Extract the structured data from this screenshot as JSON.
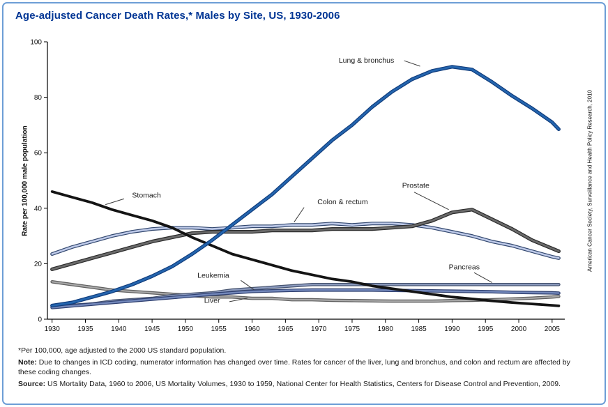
{
  "chart_data": {
    "type": "line",
    "title": "Age-adjusted Cancer Death Rates,* Males by Site, US, 1930-2006",
    "xlabel": "",
    "ylabel": "Rate per 100,000 male population",
    "xlim": [
      1929.3,
      2006.9
    ],
    "ylim": [
      0,
      100
    ],
    "grid": false,
    "legend_position": "inline-annotations",
    "x_ticks": [
      1930,
      1935,
      1940,
      1945,
      1950,
      1955,
      1960,
      1965,
      1970,
      1975,
      1980,
      1985,
      1990,
      1995,
      2000,
      2005
    ],
    "y_ticks": [
      0,
      20,
      40,
      60,
      80,
      100
    ],
    "x": [
      1930,
      1933,
      1936,
      1939,
      1942,
      1945,
      1948,
      1951,
      1954,
      1957,
      1960,
      1963,
      1966,
      1969,
      1972,
      1975,
      1978,
      1981,
      1984,
      1987,
      1990,
      1993,
      1996,
      1999,
      2002,
      2005,
      2006
    ],
    "series": [
      {
        "name": "Liver",
        "color": "#a8a8a8",
        "outline": "#606060",
        "width": 2.2,
        "values": [
          13.5,
          12.5,
          11.5,
          10.5,
          10,
          9.5,
          9,
          8.5,
          8,
          8,
          7.5,
          7.5,
          7,
          7,
          6.8,
          6.7,
          6.6,
          6.5,
          6.5,
          6.5,
          6.7,
          6.8,
          7,
          7.3,
          7.6,
          8,
          8.2
        ]
      },
      {
        "name": "Pancreas",
        "color": "#8d9cc0",
        "outline": "#46536f",
        "width": 2.2,
        "values": [
          4.5,
          5,
          5.5,
          6.5,
          7,
          7.5,
          8.5,
          9,
          9.5,
          10.5,
          11,
          11.5,
          12,
          12.5,
          12.5,
          12.5,
          12.5,
          12.5,
          12.5,
          12.5,
          12.5,
          12.5,
          12.5,
          12.5,
          12.5,
          12.5,
          12.5
        ]
      },
      {
        "name": "Leukemia",
        "color": "#7388bb",
        "outline": "#2f4070",
        "width": 2.4,
        "values": [
          4.2,
          4.8,
          5.4,
          6,
          6.6,
          7.2,
          7.8,
          8.4,
          9,
          9.5,
          10,
          10.2,
          10.4,
          10.5,
          10.5,
          10.5,
          10.5,
          10.4,
          10.3,
          10.2,
          10.1,
          10,
          9.9,
          9.7,
          9.6,
          9.5,
          9.4
        ]
      },
      {
        "name": "Colon & rectum",
        "color": "#bdc9e8",
        "outline": "#33486f",
        "width": 2.6,
        "values": [
          23.5,
          26,
          28,
          30,
          31.5,
          32.5,
          33,
          33,
          32.5,
          33,
          33.5,
          33.5,
          34,
          34,
          34.5,
          34,
          34.5,
          34.5,
          34,
          33,
          31.5,
          30,
          28,
          26.5,
          24.5,
          22.5,
          22
        ]
      },
      {
        "name": "Prostate",
        "color": "#6a6a6a",
        "outline": "#2b2b2b",
        "width": 2.8,
        "values": [
          18,
          20,
          22,
          24,
          26,
          28,
          29.5,
          31,
          31.5,
          31.5,
          31.5,
          32,
          32,
          32,
          32.5,
          32.5,
          32.5,
          33,
          33.5,
          35.5,
          38.5,
          39.5,
          36,
          32.5,
          28.5,
          25.5,
          24.5
        ]
      },
      {
        "name": "Stomach",
        "color": "#141414",
        "outline": null,
        "width": 3.8,
        "values": [
          46,
          44,
          42,
          39.5,
          37.5,
          35.5,
          33,
          29.5,
          26.5,
          23.5,
          21.5,
          19.5,
          17.5,
          16,
          14.5,
          13.5,
          12,
          11,
          10,
          9,
          8,
          7.3,
          6.6,
          6,
          5.5,
          5,
          4.8
        ]
      },
      {
        "name": "Lung & bronchus",
        "color": "#2465ae",
        "outline": "#113d7d",
        "width": 2.8,
        "values": [
          4.9,
          6,
          8,
          10,
          12.5,
          15.5,
          19,
          23.5,
          28.5,
          34,
          39.5,
          45,
          51.5,
          58,
          64.5,
          70,
          76.5,
          82,
          86.5,
          89.5,
          91,
          90,
          85.5,
          80.5,
          76,
          71,
          68.5
        ]
      }
    ],
    "annotations": [
      {
        "label": "Lung & bronchus",
        "text_x": 1973,
        "text_y": 92.5,
        "line": [
          1982.8,
          93.2,
          1985.2,
          91.2
        ]
      },
      {
        "label": "Stomach",
        "text_x": 1942,
        "text_y": 43.8,
        "line": [
          1940.8,
          43.4,
          1938.0,
          41.3
        ]
      },
      {
        "label": "Colon & rectum",
        "text_x": 1969.8,
        "text_y": 41.5,
        "line": [
          1967.8,
          40.3,
          1966.3,
          35.0
        ]
      },
      {
        "label": "Prostate",
        "text_x": 1982.5,
        "text_y": 47.3,
        "line": [
          1984.3,
          45.8,
          1989.5,
          39.5
        ]
      },
      {
        "label": "Pancreas",
        "text_x": 1989.5,
        "text_y": 18.0,
        "line": [
          1993.3,
          16.8,
          1996.0,
          13.2
        ]
      },
      {
        "label": "Leukemia",
        "text_x": 1951.8,
        "text_y": 15.0,
        "line": [
          1958.3,
          14.0,
          1960.3,
          10.6
        ]
      },
      {
        "label": "Liver",
        "text_x": 1952.8,
        "text_y": 5.9,
        "line": [
          1956.6,
          6.3,
          1959.3,
          7.6
        ]
      }
    ]
  },
  "footnotes": {
    "asterisk": "*Per 100,000, age adjusted to the 2000 US standard population.",
    "note_label": "Note:",
    "note_text": " Due to changes in ICD coding, numerator information has changed over time. Rates for cancer of the liver, lung and bronchus, and colon and rectum are affected by these coding changes.",
    "source_label": "Source:",
    "source_text": " US Mortality Data, 1960 to 2006, US Mortality Volumes, 1930 to 1959, National Center for Health Statistics, Centers for Disease Control and Prevention, 2009."
  },
  "credit": "American Cancer Society, Surveillance and Health Policy Research, 2010",
  "colors": {
    "title": "#003594",
    "frame_border": "#6d9ed6",
    "axis": "#000000"
  }
}
